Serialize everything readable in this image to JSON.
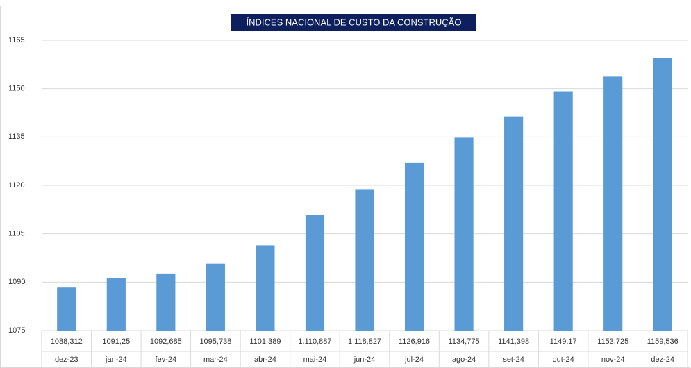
{
  "chart_data": {
    "type": "bar",
    "title": "ÍNDICES NACIONAL DE CUSTO DA CONSTRUÇÃO",
    "categories": [
      "dez-23",
      "jan-24",
      "fev-24",
      "mar-24",
      "abr-24",
      "mai-24",
      "jun-24",
      "jul-24",
      "ago-24",
      "set-24",
      "out-24",
      "nov-24",
      "dez-24"
    ],
    "values": [
      1088.312,
      1091.25,
      1092.685,
      1095.738,
      1101.389,
      1110.887,
      1118.827,
      1126.916,
      1134.775,
      1141.398,
      1149.17,
      1153.725,
      1159.536
    ],
    "value_labels": [
      "1088,312",
      "1091,25",
      "1092,685",
      "1095,738",
      "1101,389",
      "1.110,887",
      "1.118,827",
      "1126,916",
      "1134,775",
      "1141,398",
      "1149,17",
      "1153,725",
      "1159,536"
    ],
    "color": "#5b9bd5",
    "ylim": [
      1075,
      1165
    ],
    "yticks": [
      1075,
      1090,
      1105,
      1120,
      1135,
      1150,
      1165
    ],
    "grid": true
  }
}
